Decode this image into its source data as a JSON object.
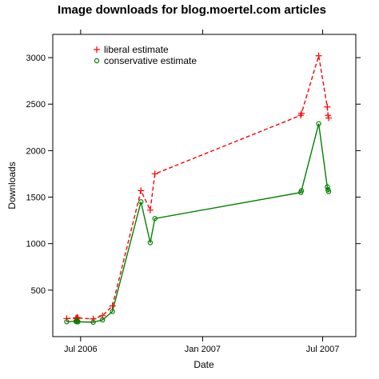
{
  "chart_data": {
    "type": "line",
    "title": "Image downloads for blog.moertel.com articles",
    "xlabel": "Date",
    "ylabel": "Downloads",
    "x_ticks": [
      "Jul 2006",
      "Jan 2007",
      "Jul 2007"
    ],
    "y_ticks": [
      500,
      1000,
      1500,
      2000,
      2500,
      3000
    ],
    "xlim": [
      "2006-05-20",
      "2007-08-20"
    ],
    "ylim": [
      0,
      3250
    ],
    "grid": false,
    "legend_position": "top-left",
    "series": [
      {
        "name": "liberal estimate",
        "color": "#ff0000",
        "line_style": "dashed",
        "marker": "plus",
        "x": [
          "2006-06-10",
          "2006-06-24",
          "2006-06-25",
          "2006-06-26",
          "2006-06-27",
          "2006-07-20",
          "2006-08-03",
          "2006-08-18",
          "2006-09-30",
          "2006-10-14",
          "2006-10-21",
          "2007-05-29",
          "2007-05-30",
          "2007-06-25",
          "2007-07-08",
          "2007-07-09",
          "2007-07-10"
        ],
        "values": [
          195,
          200,
          195,
          205,
          200,
          190,
          225,
          330,
          1570,
          1360,
          1750,
          2380,
          2400,
          3020,
          2470,
          2380,
          2350
        ]
      },
      {
        "name": "conservative estimate",
        "color": "#008000",
        "line_style": "solid",
        "marker": "circle",
        "x": [
          "2006-06-10",
          "2006-06-24",
          "2006-06-25",
          "2006-06-26",
          "2006-06-27",
          "2006-07-20",
          "2006-08-03",
          "2006-08-18",
          "2006-09-30",
          "2006-10-14",
          "2006-10-21",
          "2007-05-29",
          "2007-05-30",
          "2007-06-25",
          "2007-07-08",
          "2007-07-09",
          "2007-07-10"
        ],
        "values": [
          160,
          165,
          160,
          170,
          160,
          155,
          180,
          270,
          1450,
          1010,
          1270,
          1550,
          1570,
          2290,
          1610,
          1580,
          1560
        ]
      }
    ]
  }
}
